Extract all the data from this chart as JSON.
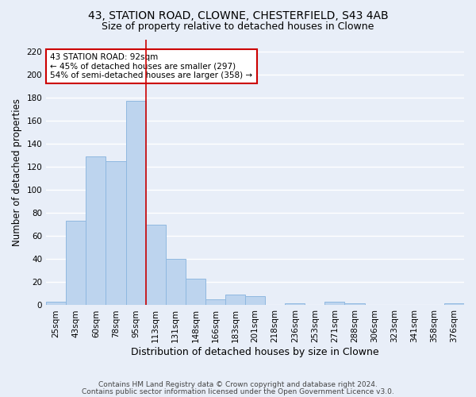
{
  "title1": "43, STATION ROAD, CLOWNE, CHESTERFIELD, S43 4AB",
  "title2": "Size of property relative to detached houses in Clowne",
  "xlabel": "Distribution of detached houses by size in Clowne",
  "ylabel": "Number of detached properties",
  "categories": [
    "25sqm",
    "43sqm",
    "60sqm",
    "78sqm",
    "95sqm",
    "113sqm",
    "131sqm",
    "148sqm",
    "166sqm",
    "183sqm",
    "201sqm",
    "218sqm",
    "236sqm",
    "253sqm",
    "271sqm",
    "288sqm",
    "306sqm",
    "323sqm",
    "341sqm",
    "358sqm",
    "376sqm"
  ],
  "values": [
    3,
    73,
    129,
    125,
    177,
    70,
    40,
    23,
    5,
    9,
    8,
    0,
    2,
    0,
    3,
    2,
    0,
    0,
    0,
    0,
    2
  ],
  "bar_color": "#bdd4ee",
  "bar_edge_color": "#8fb8e0",
  "annotation_text": "43 STATION ROAD: 92sqm\n← 45% of detached houses are smaller (297)\n54% of semi-detached houses are larger (358) →",
  "annotation_box_color": "#ffffff",
  "annotation_box_edge_color": "#cc0000",
  "vline_color": "#cc0000",
  "vline_x": 4.5,
  "ylim": [
    0,
    230
  ],
  "yticks": [
    0,
    20,
    40,
    60,
    80,
    100,
    120,
    140,
    160,
    180,
    200,
    220
  ],
  "footer1": "Contains HM Land Registry data © Crown copyright and database right 2024.",
  "footer2": "Contains public sector information licensed under the Open Government Licence v3.0.",
  "bg_color": "#e8eef8",
  "plot_bg_color": "#e8eef8",
  "grid_color": "#ffffff",
  "title1_fontsize": 10,
  "title2_fontsize": 9,
  "xlabel_fontsize": 9,
  "ylabel_fontsize": 8.5,
  "tick_fontsize": 7.5,
  "annot_fontsize": 7.5,
  "footer_fontsize": 6.5
}
